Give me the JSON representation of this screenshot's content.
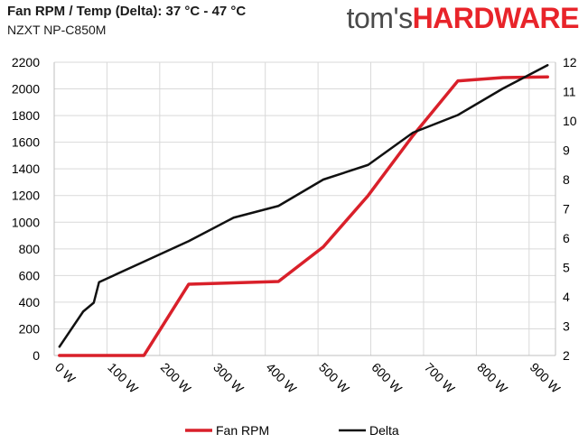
{
  "header": {
    "title": "Fan RPM / Temp (Delta): 37 °C - 47 °C",
    "subtitle": "NZXT NP-C850M",
    "logo_part1": "tom's",
    "logo_part2": "HARDWARE"
  },
  "colors": {
    "fan_rpm": "#d9202a",
    "delta": "#111111",
    "grid": "#d9d9d9",
    "logo_red": "#e8242a",
    "logo_gray": "#4a4a4a"
  },
  "chart_data": {
    "type": "line",
    "title": "Fan RPM / Temp (Delta): 37 °C - 47 °C",
    "subtitle": "NZXT NP-C850M",
    "xlim": [
      0,
      950
    ],
    "x_ticks": [
      0,
      100,
      200,
      300,
      400,
      500,
      600,
      700,
      800,
      900
    ],
    "x_tick_labels": [
      "0 W",
      "100 W",
      "200 W",
      "300 W",
      "400 W",
      "500 W",
      "600 W",
      "700 W",
      "800 W",
      "900 W"
    ],
    "y_left": {
      "min": 0,
      "max": 2200,
      "ticks": [
        0,
        200,
        400,
        600,
        800,
        1000,
        1200,
        1400,
        1600,
        1800,
        2000,
        2200
      ]
    },
    "y_right": {
      "min": 2,
      "max": 12,
      "ticks": [
        2,
        3,
        4,
        5,
        6,
        7,
        8,
        9,
        10,
        11,
        12
      ]
    },
    "grid": true,
    "legend_position": "bottom",
    "series": [
      {
        "name": "Fan RPM",
        "axis": "left",
        "color": "#d9202a",
        "x": [
          10,
          85,
          170,
          255,
          340,
          425,
          510,
          595,
          680,
          765,
          850,
          935
        ],
        "y": [
          0,
          0,
          0,
          535,
          545,
          555,
          815,
          1200,
          1650,
          2060,
          2085,
          2090
        ]
      },
      {
        "name": "Delta",
        "axis": "right",
        "color": "#111111",
        "x": [
          10,
          55,
          75,
          85,
          170,
          255,
          340,
          425,
          510,
          595,
          680,
          765,
          850,
          935
        ],
        "y": [
          2.3,
          3.5,
          3.8,
          4.5,
          5.2,
          5.9,
          6.7,
          7.1,
          8.0,
          8.5,
          9.6,
          10.2,
          11.1,
          11.9
        ]
      }
    ]
  }
}
